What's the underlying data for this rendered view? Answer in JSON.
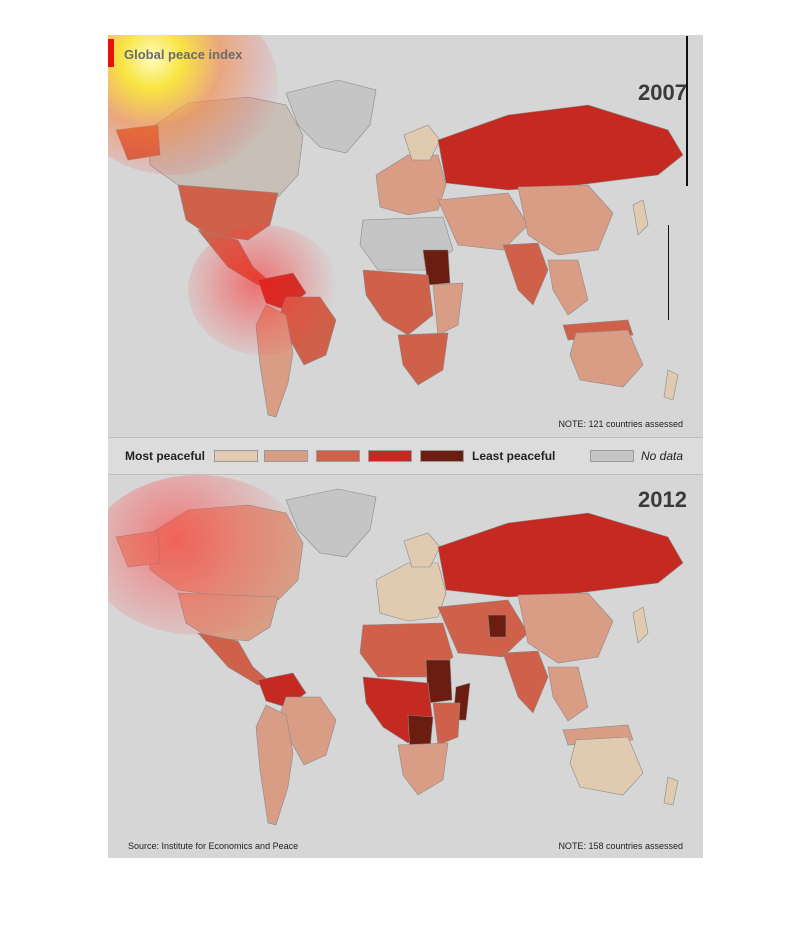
{
  "title": "Global peace index",
  "maps": [
    {
      "year": "2007",
      "note": "NOTE: 121 countries assessed"
    },
    {
      "year": "2012",
      "note": "NOTE: 158 countries assessed"
    }
  ],
  "legend": {
    "most": "Most peaceful",
    "least": "Least peaceful",
    "nodata": "No data",
    "colors": [
      "#e0cbb1",
      "#d99c85",
      "#cf6049",
      "#c42a21",
      "#6b1e10"
    ],
    "nodata_color": "#c5c5c5"
  },
  "source": "Source: Institute for Economics and Peace"
}
